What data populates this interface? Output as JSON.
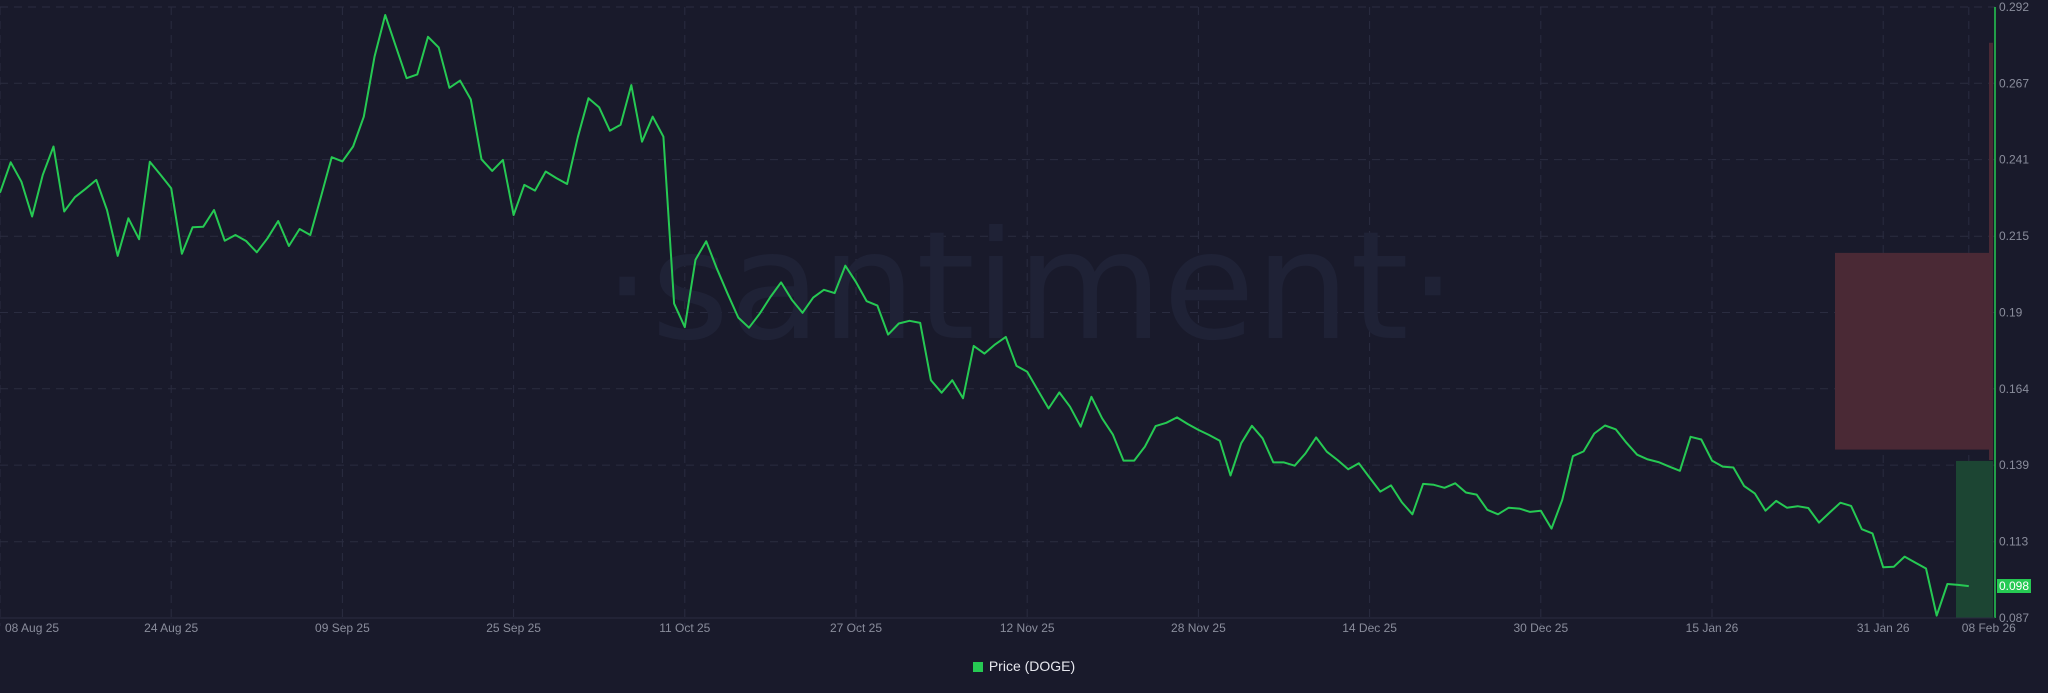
{
  "watermark": "·santiment·",
  "chart_data": {
    "type": "line",
    "title": "",
    "xlabel": "",
    "ylabel": "",
    "y_axis_position": "right",
    "ylim": [
      0.087,
      0.292
    ],
    "y_ticks": [
      "0.292",
      "0.267",
      "0.241",
      "0.215",
      "0.19",
      "0.164",
      "0.139",
      "0.113",
      "0.087"
    ],
    "y_tick_values": [
      0.292,
      0.2664,
      0.2408,
      0.2151,
      0.1895,
      0.1639,
      0.1383,
      0.1126,
      0.087
    ],
    "x_ticks": [
      {
        "label": "08 Aug 25",
        "date": "2025-08-08"
      },
      {
        "label": "24 Aug 25",
        "date": "2025-08-24"
      },
      {
        "label": "09 Sep 25",
        "date": "2025-09-09"
      },
      {
        "label": "25 Sep 25",
        "date": "2025-09-25"
      },
      {
        "label": "11 Oct 25",
        "date": "2025-10-11"
      },
      {
        "label": "27 Oct 25",
        "date": "2025-10-27"
      },
      {
        "label": "12 Nov 25",
        "date": "2025-11-12"
      },
      {
        "label": "28 Nov 25",
        "date": "2025-11-28"
      },
      {
        "label": "14 Dec 25",
        "date": "2025-12-14"
      },
      {
        "label": "30 Dec 25",
        "date": "2025-12-30"
      },
      {
        "label": "15 Jan 26",
        "date": "2026-01-15"
      },
      {
        "label": "31 Jan 26",
        "date": "2026-01-31"
      },
      {
        "label": "08 Feb 26",
        "date": "2026-02-08"
      }
    ],
    "grid": true,
    "legend_placement": "bottom-center",
    "series": [
      {
        "name": "Price (DOGE)",
        "color": "#26c953",
        "x": [
          "2025-08-08",
          "2025-08-09",
          "2025-08-10",
          "2025-08-11",
          "2025-08-12",
          "2025-08-13",
          "2025-08-14",
          "2025-08-15",
          "2025-08-16",
          "2025-08-17",
          "2025-08-18",
          "2025-08-19",
          "2025-08-20",
          "2025-08-21",
          "2025-08-22",
          "2025-08-23",
          "2025-08-24",
          "2025-08-25",
          "2025-08-26",
          "2025-08-27",
          "2025-08-28",
          "2025-08-29",
          "2025-08-30",
          "2025-08-31",
          "2025-09-01",
          "2025-09-02",
          "2025-09-03",
          "2025-09-04",
          "2025-09-05",
          "2025-09-06",
          "2025-09-07",
          "2025-09-08",
          "2025-09-09",
          "2025-09-10",
          "2025-09-11",
          "2025-09-12",
          "2025-09-13",
          "2025-09-14",
          "2025-09-15",
          "2025-09-16",
          "2025-09-17",
          "2025-09-18",
          "2025-09-19",
          "2025-09-20",
          "2025-09-21",
          "2025-09-22",
          "2025-09-23",
          "2025-09-24",
          "2025-09-25",
          "2025-09-26",
          "2025-09-27",
          "2025-09-28",
          "2025-09-29",
          "2025-09-30",
          "2025-10-01",
          "2025-10-02",
          "2025-10-03",
          "2025-10-04",
          "2025-10-05",
          "2025-10-06",
          "2025-10-07",
          "2025-10-08",
          "2025-10-09",
          "2025-10-10",
          "2025-10-11",
          "2025-10-12",
          "2025-10-13",
          "2025-10-14",
          "2025-10-15",
          "2025-10-16",
          "2025-10-17",
          "2025-10-18",
          "2025-10-19",
          "2025-10-20",
          "2025-10-21",
          "2025-10-22",
          "2025-10-23",
          "2025-10-24",
          "2025-10-25",
          "2025-10-26",
          "2025-10-27",
          "2025-10-28",
          "2025-10-29",
          "2025-10-30",
          "2025-10-31",
          "2025-11-01",
          "2025-11-02",
          "2025-11-03",
          "2025-11-04",
          "2025-11-05",
          "2025-11-06",
          "2025-11-07",
          "2025-11-08",
          "2025-11-09",
          "2025-11-10",
          "2025-11-11",
          "2025-11-12",
          "2025-11-13",
          "2025-11-14",
          "2025-11-15",
          "2025-11-16",
          "2025-11-17",
          "2025-11-18",
          "2025-11-19",
          "2025-11-20",
          "2025-11-21",
          "2025-11-22",
          "2025-11-23",
          "2025-11-24",
          "2025-11-25",
          "2025-11-26",
          "2025-11-27",
          "2025-11-28",
          "2025-11-29",
          "2025-11-30",
          "2025-12-01",
          "2025-12-02",
          "2025-12-03",
          "2025-12-04",
          "2025-12-05",
          "2025-12-06",
          "2025-12-07",
          "2025-12-08",
          "2025-12-09",
          "2025-12-10",
          "2025-12-11",
          "2025-12-12",
          "2025-12-13",
          "2025-12-14",
          "2025-12-15",
          "2025-12-16",
          "2025-12-17",
          "2025-12-18",
          "2025-12-19",
          "2025-12-20",
          "2025-12-21",
          "2025-12-22",
          "2025-12-23",
          "2025-12-24",
          "2025-12-25",
          "2025-12-26",
          "2025-12-27",
          "2025-12-28",
          "2025-12-29",
          "2025-12-30",
          "2025-12-31",
          "2026-01-01",
          "2026-01-02",
          "2026-01-03",
          "2026-01-04",
          "2026-01-05",
          "2026-01-06",
          "2026-01-07",
          "2026-01-08",
          "2026-01-09",
          "2026-01-10",
          "2026-01-11",
          "2026-01-12",
          "2026-01-13",
          "2026-01-14",
          "2026-01-15",
          "2026-01-16",
          "2026-01-17",
          "2026-01-18",
          "2026-01-19",
          "2026-01-20",
          "2026-01-21",
          "2026-01-22",
          "2026-01-23",
          "2026-01-24",
          "2026-01-25",
          "2026-01-26",
          "2026-01-27",
          "2026-01-28",
          "2026-01-29",
          "2026-01-30",
          "2026-01-31",
          "2026-02-01",
          "2026-02-02",
          "2026-02-03",
          "2026-02-04",
          "2026-02-05",
          "2026-02-06",
          "2026-02-07",
          "2026-02-08"
        ],
        "values": [
          0.2297,
          0.2399,
          0.2334,
          0.2217,
          0.2357,
          0.2452,
          0.2234,
          0.2282,
          0.231,
          0.234,
          0.2239,
          0.2085,
          0.2211,
          0.2141,
          0.2401,
          0.2357,
          0.2312,
          0.2092,
          0.2181,
          0.2183,
          0.2239,
          0.2136,
          0.2155,
          0.2135,
          0.2097,
          0.2144,
          0.2202,
          0.2118,
          0.2175,
          0.2155,
          0.2284,
          0.2416,
          0.2402,
          0.2452,
          0.2552,
          0.2753,
          0.2893,
          0.2787,
          0.2681,
          0.2694,
          0.282,
          0.2784,
          0.2649,
          0.2673,
          0.261,
          0.2409,
          0.237,
          0.2407,
          0.2222,
          0.2323,
          0.2304,
          0.2368,
          0.2346,
          0.2326,
          0.2483,
          0.2614,
          0.2583,
          0.2505,
          0.2525,
          0.2658,
          0.2468,
          0.2552,
          0.2485,
          0.1925,
          0.1846,
          0.2072,
          0.2134,
          0.2042,
          0.1958,
          0.1878,
          0.1844,
          0.1891,
          0.1947,
          0.1996,
          0.1938,
          0.1894,
          0.1945,
          0.1971,
          0.196,
          0.2052,
          0.1997,
          0.1933,
          0.1918,
          0.1821,
          0.1858,
          0.1867,
          0.186,
          0.1668,
          0.1626,
          0.1668,
          0.1607,
          0.1783,
          0.1757,
          0.1788,
          0.1813,
          0.1716,
          0.1696,
          0.1634,
          0.1573,
          0.1627,
          0.1579,
          0.1512,
          0.1612,
          0.154,
          0.1486,
          0.1398,
          0.1398,
          0.1445,
          0.1514,
          0.1525,
          0.1543,
          0.1521,
          0.1501,
          0.1484,
          0.1465,
          0.1348,
          0.1456,
          0.1515,
          0.1473,
          0.1392,
          0.1392,
          0.1381,
          0.1422,
          0.1476,
          0.1428,
          0.14,
          0.1369,
          0.1389,
          0.1341,
          0.1294,
          0.1315,
          0.1259,
          0.1218,
          0.132,
          0.1317,
          0.1307,
          0.1322,
          0.1291,
          0.1284,
          0.1233,
          0.1218,
          0.124,
          0.1237,
          0.1226,
          0.123,
          0.117,
          0.1266,
          0.1413,
          0.1429,
          0.1489,
          0.1516,
          0.1503,
          0.1458,
          0.1418,
          0.1402,
          0.1393,
          0.1378,
          0.1364,
          0.1478,
          0.1469,
          0.1398,
          0.1378,
          0.1375,
          0.1313,
          0.1288,
          0.123,
          0.1263,
          0.124,
          0.1245,
          0.1239,
          0.119,
          0.1224,
          0.1257,
          0.1246,
          0.1168,
          0.1154,
          0.104,
          0.1042,
          0.1076,
          0.1056,
          0.1036,
          0.0878,
          0.0984,
          0.0981,
          0.0977
        ]
      }
    ],
    "current_value_label": "0.098",
    "overlays": [
      {
        "kind": "range-box",
        "color": "#4a2935",
        "y_from": 0.1435,
        "y_to": 0.2095
      },
      {
        "kind": "range-box",
        "color": "#1c4533",
        "y_from": 0.087,
        "y_to": 0.1397
      },
      {
        "kind": "range-line",
        "color": "#4a2935",
        "y_from": 0.14,
        "y_to": 0.28
      }
    ],
    "colors": {
      "background": "#191a2b",
      "grid": "#2a2c40",
      "tick_text": "#8a8d9c",
      "axis_line": "#26c953"
    }
  }
}
